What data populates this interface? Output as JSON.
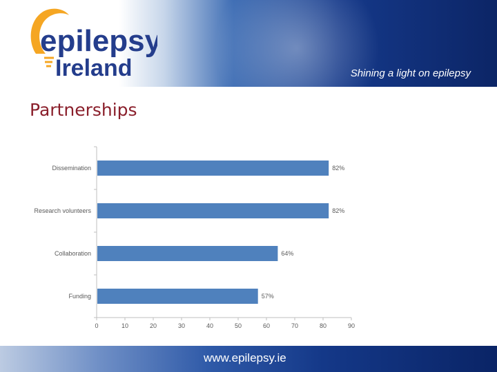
{
  "header": {
    "logo_line1": "epilepsy",
    "logo_line2": "Ireland",
    "tagline": "Shining a light on epilepsy"
  },
  "slide": {
    "title": "Partnerships"
  },
  "footer": {
    "url": "www.epilepsy.ie"
  },
  "colors": {
    "bar": "#4f81bd",
    "title": "#8a1f2b",
    "logo_orange": "#f5a623",
    "logo_navy": "#243d8c"
  },
  "chart_data": {
    "type": "bar",
    "orientation": "horizontal",
    "categories": [
      "Dissemination",
      "Research volunteers",
      "Collaboration",
      "Funding"
    ],
    "values": [
      82,
      82,
      64,
      57
    ],
    "value_labels": [
      "82%",
      "82%",
      "64%",
      "57%"
    ],
    "xticks": [
      0,
      10,
      20,
      30,
      40,
      50,
      60,
      70,
      80,
      90
    ],
    "xlim": [
      0,
      90
    ],
    "title": "",
    "xlabel": "",
    "ylabel": "",
    "grid": false,
    "legend": "none"
  }
}
